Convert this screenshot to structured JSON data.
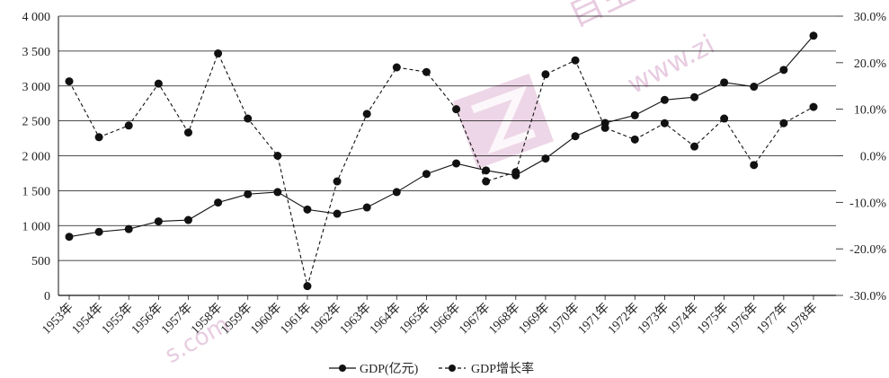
{
  "chart_data": {
    "type": "line",
    "categories": [
      "1953年",
      "1954年",
      "1955年",
      "1956年",
      "1957年",
      "1958年",
      "1959年",
      "1960年",
      "1961年",
      "1962年",
      "1963年",
      "1964年",
      "1965年",
      "1966年",
      "1967年",
      "1968年",
      "1969年",
      "1970年",
      "1971年",
      "1972年",
      "1973年",
      "1974年",
      "1975年",
      "1976年",
      "1977年",
      "1978年"
    ],
    "series": [
      {
        "name": "GDP(亿元)",
        "axis": "left",
        "style": "solid",
        "values": [
          840,
          910,
          950,
          1060,
          1080,
          1330,
          1450,
          1480,
          1230,
          1170,
          1260,
          1480,
          1740,
          1890,
          1790,
          1720,
          1960,
          2280,
          2470,
          2580,
          2800,
          2840,
          3050,
          2990,
          3230,
          3720
        ]
      },
      {
        "name": "GDP增长率",
        "axis": "right",
        "style": "dashed",
        "values": [
          16.0,
          4.0,
          6.5,
          15.5,
          5.0,
          22.0,
          8.0,
          0.0,
          -28.0,
          -5.5,
          9.0,
          19.0,
          18.0,
          10.0,
          -5.5,
          -3.5,
          17.5,
          20.5,
          6.0,
          3.5,
          7.0,
          2.0,
          8.0,
          -2.0,
          7.0,
          10.5
        ]
      }
    ],
    "y_left": {
      "ylim": [
        0,
        4000
      ],
      "ticks": [
        0,
        500,
        1000,
        1500,
        2000,
        2500,
        3000,
        3500,
        4000
      ],
      "tick_labels": [
        "0",
        "500",
        "1 000",
        "1 500",
        "2 000",
        "2 500",
        "3 000",
        "3 500",
        "4 000"
      ]
    },
    "y_right": {
      "ylim": [
        -30,
        30
      ],
      "ticks": [
        30,
        20,
        10,
        0,
        -10,
        -20,
        -30
      ],
      "tick_labels": [
        "30.0%",
        "20.0%",
        "10.0%",
        "0.0%",
        "-10.0%",
        "-20.0%",
        "-30.0%"
      ]
    },
    "grid": true,
    "legend": {
      "placement": "bottom-center",
      "entries": [
        "GDP(亿元)",
        "GDP增长率"
      ]
    },
    "colors": {
      "line": "#111111",
      "grid": "#111111",
      "watermark": "#d7a3c9"
    }
  },
  "watermark": {
    "logo_icon": "z-logo-icon",
    "url_text": "www.zi",
    "url_text_lower": "s.com",
    "brand_text": "自主"
  }
}
